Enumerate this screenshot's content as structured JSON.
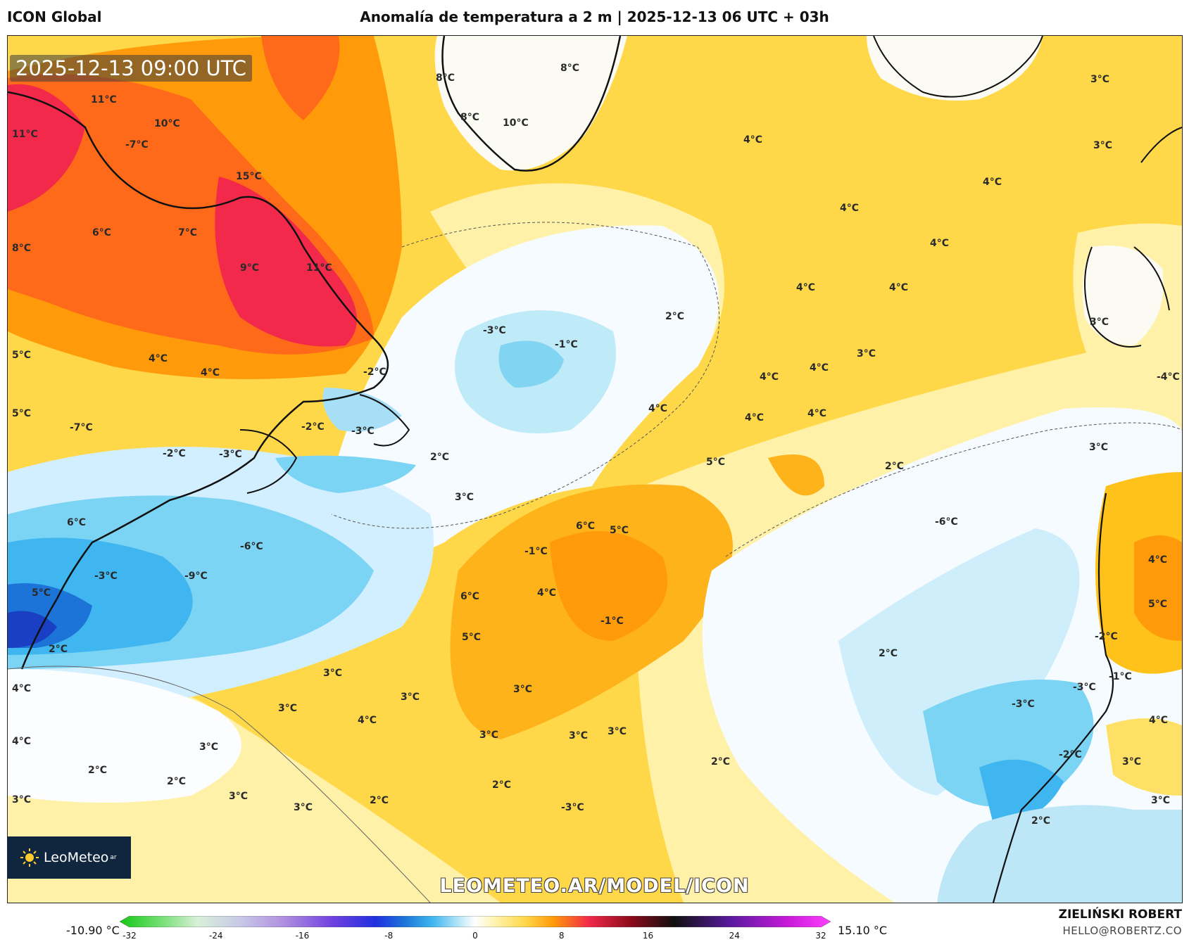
{
  "header": {
    "model": "ICON Global",
    "title": "Anomalía de temperatura a 2 m | 2025-12-13 06 UTC + 03h"
  },
  "map": {
    "valid_time": "2025-12-13 09:00 UTC",
    "watermark": "LEOMETEO.AR/MODEL/ICON",
    "labels": [
      {
        "text": "11°C"
      },
      {
        "text": "10°C"
      },
      {
        "text": "11°C"
      },
      {
        "text": "-7°C"
      },
      {
        "text": "15°C"
      },
      {
        "text": "6°C"
      },
      {
        "text": "7°C"
      },
      {
        "text": "8°C"
      },
      {
        "text": "9°C"
      },
      {
        "text": "11°C"
      },
      {
        "text": "8°C"
      },
      {
        "text": "8°C"
      },
      {
        "text": "8°C"
      },
      {
        "text": "10°C"
      },
      {
        "text": "3°C"
      },
      {
        "text": "3°C"
      },
      {
        "text": "4°C"
      },
      {
        "text": "4°C"
      },
      {
        "text": "4°C"
      },
      {
        "text": "4°C"
      },
      {
        "text": "4°C"
      },
      {
        "text": "4°C"
      },
      {
        "text": "2°C"
      },
      {
        "text": "-3°C"
      },
      {
        "text": "-1°C"
      },
      {
        "text": "5°C"
      },
      {
        "text": "4°C"
      },
      {
        "text": "4°C"
      },
      {
        "text": "-2°C"
      },
      {
        "text": "5°C"
      },
      {
        "text": "-7°C"
      },
      {
        "text": "-2°C"
      },
      {
        "text": "-3°C"
      },
      {
        "text": "-3°C"
      },
      {
        "text": "-2°C"
      },
      {
        "text": "2°C"
      },
      {
        "text": "3°C"
      },
      {
        "text": "3°C"
      },
      {
        "text": "4°C"
      },
      {
        "text": "4°C"
      },
      {
        "text": "4°C"
      },
      {
        "text": "4°C"
      },
      {
        "text": "4°C"
      },
      {
        "text": "5°C"
      },
      {
        "text": "3°C"
      },
      {
        "text": "2°C"
      },
      {
        "text": "3°C"
      },
      {
        "text": "-4°C"
      },
      {
        "text": "-6°C"
      },
      {
        "text": "6°C"
      },
      {
        "text": "6°C"
      },
      {
        "text": "5°C"
      },
      {
        "text": "-1°C"
      },
      {
        "text": "-6°C"
      },
      {
        "text": "-3°C"
      },
      {
        "text": "-9°C"
      },
      {
        "text": "5°C"
      },
      {
        "text": "4°C"
      },
      {
        "text": "6°C"
      },
      {
        "text": "4°C"
      },
      {
        "text": "5°C"
      },
      {
        "text": "5°C"
      },
      {
        "text": "-1°C"
      },
      {
        "text": "-2°C"
      },
      {
        "text": "2°C"
      },
      {
        "text": "2°C"
      },
      {
        "text": "3°C"
      },
      {
        "text": "3°C"
      },
      {
        "text": "4°C"
      },
      {
        "text": "3°C"
      },
      {
        "text": "4°C"
      },
      {
        "text": "3°C"
      },
      {
        "text": "3°C"
      },
      {
        "text": "-1°C"
      },
      {
        "text": "-3°C"
      },
      {
        "text": "-3°C"
      },
      {
        "text": "4°C"
      },
      {
        "text": "4°C"
      },
      {
        "text": "3°C"
      },
      {
        "text": "3°C"
      },
      {
        "text": "3°C"
      },
      {
        "text": "2°C"
      },
      {
        "text": "-2°C"
      },
      {
        "text": "3°C"
      },
      {
        "text": "2°C"
      },
      {
        "text": "3°C"
      },
      {
        "text": "2°C"
      },
      {
        "text": "2°C"
      },
      {
        "text": "3°C"
      },
      {
        "text": "3°C"
      },
      {
        "text": "2°C"
      },
      {
        "text": "-3°C"
      },
      {
        "text": "2°C"
      },
      {
        "text": "3°C"
      }
    ]
  },
  "logo": {
    "name": "LeoMeteo",
    "sub": "ar"
  },
  "colorbar": {
    "min_label": "-10.90 °C",
    "max_label": "15.10 °C",
    "ticks": [
      "-32",
      "-24",
      "-16",
      "-8",
      "0",
      "8",
      "16",
      "24",
      "32"
    ],
    "range": [
      -32,
      32
    ]
  },
  "credits": {
    "author": "ZIELIŃSKI ROBERT",
    "email": "HELLO@ROBERTZ.CO"
  }
}
